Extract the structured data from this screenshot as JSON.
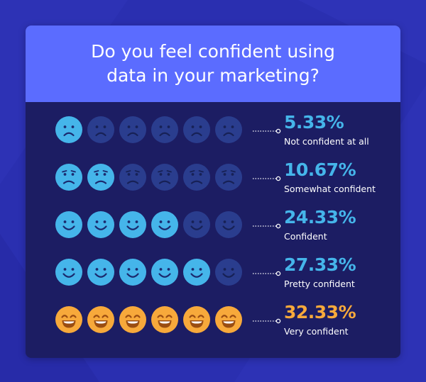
{
  "title": "Do you feel confident using data in your marketing?",
  "colors": {
    "background": "#2a2fb0",
    "header": "#5b6cff",
    "panel": "#1c1d63",
    "face_on": "#45b5ea",
    "face_off": "#2a3d8e",
    "face_highlight": "#f7a93b",
    "feature_on": "#1b2a6e",
    "feature_off": "#172156",
    "feature_highlight": "#9a4d12",
    "percent_blue": "#45b5ea",
    "percent_orange": "#f7a93b",
    "label": "#ffffff"
  },
  "chart_data": {
    "type": "pictograph",
    "title": "Do you feel confident using data in your marketing?",
    "faces_per_row": 6,
    "rows": [
      {
        "value_label": "5.33%",
        "value": 5.33,
        "label": "Not confident at all",
        "icons_filled": 1,
        "expression": "sad",
        "highlight": false
      },
      {
        "value_label": "10.67%",
        "value": 10.67,
        "label": "Somewhat confident",
        "icons_filled": 2,
        "expression": "frown",
        "highlight": false
      },
      {
        "value_label": "24.33%",
        "value": 24.33,
        "label": "Confident",
        "icons_filled": 4,
        "expression": "smile",
        "highlight": false
      },
      {
        "value_label": "27.33%",
        "value": 27.33,
        "label": "Pretty confident",
        "icons_filled": 5,
        "expression": "smile",
        "highlight": false
      },
      {
        "value_label": "32.33%",
        "value": 32.33,
        "label": "Very confident",
        "icons_filled": 6,
        "expression": "grin",
        "highlight": true
      }
    ]
  }
}
